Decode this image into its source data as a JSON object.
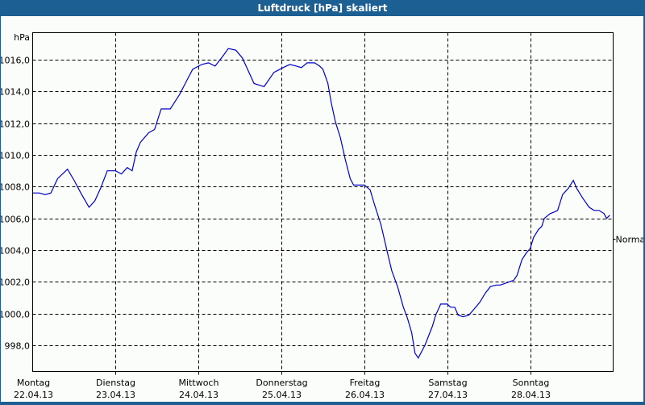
{
  "window": {
    "title": "Luftdruck [hPa] skaliert",
    "colors": {
      "frame": "#1c5f92",
      "background": "#fbfdfb",
      "line": "#0000c8",
      "grid": "#000000"
    }
  },
  "chart_data": {
    "type": "line",
    "title": "Luftdruck [hPa] skaliert",
    "xlabel": "",
    "ylabel": "hPa",
    "ylim": [
      996.4,
      1017.8
    ],
    "yticks": [
      998.0,
      1000.0,
      1002.0,
      1004.0,
      1006.0,
      1008.0,
      1010.0,
      1012.0,
      1014.0,
      1016.0
    ],
    "ytick_labels": [
      "998,0",
      "1000,0",
      "1002,0",
      "1004,0",
      "1006,0",
      "1008,0",
      "1010,0",
      "1012,0",
      "1014,0",
      "1016,0"
    ],
    "xlim": [
      0,
      7
    ],
    "xticks": [
      {
        "day": "Montag",
        "date": "22.04.13"
      },
      {
        "day": "Dienstag",
        "date": "23.04.13"
      },
      {
        "day": "Mittwoch",
        "date": "24.04.13"
      },
      {
        "day": "Donnerstag",
        "date": "25.04.13"
      },
      {
        "day": "Freitag",
        "date": "26.04.13"
      },
      {
        "day": "Samstag",
        "date": "27.04.13"
      },
      {
        "day": "Sonntag",
        "date": "28.04.13"
      }
    ],
    "grid": true,
    "annotation": {
      "label": "Normal",
      "value": 1004.7
    },
    "series": [
      {
        "name": "Luftdruck",
        "x": [
          0.0,
          0.08,
          0.15,
          0.22,
          0.3,
          0.42,
          0.5,
          0.58,
          0.68,
          0.75,
          0.82,
          0.9,
          1.0,
          1.07,
          1.14,
          1.2,
          1.25,
          1.3,
          1.4,
          1.47,
          1.55,
          1.66,
          1.77,
          1.87,
          1.93,
          2.04,
          2.12,
          2.2,
          2.29,
          2.36,
          2.45,
          2.53,
          2.67,
          2.79,
          2.91,
          3.02,
          3.1,
          3.18,
          3.24,
          3.31,
          3.4,
          3.46,
          3.5,
          3.56,
          3.6,
          3.65,
          3.71,
          3.77,
          3.83,
          3.87,
          3.94,
          4.0,
          4.07,
          4.12,
          4.2,
          4.28,
          4.33,
          4.4,
          4.47,
          4.52,
          4.57,
          4.61,
          4.65,
          4.73,
          4.82,
          4.86,
          4.92,
          5.0,
          5.04,
          5.09,
          5.13,
          5.19,
          5.26,
          5.31,
          5.39,
          5.46,
          5.52,
          5.59,
          5.64,
          5.75,
          5.8,
          5.84,
          5.9,
          5.95,
          6.0,
          6.04,
          6.1,
          6.14,
          6.17,
          6.24,
          6.29,
          6.33,
          6.39,
          6.46,
          6.52,
          6.56,
          6.63,
          6.71,
          6.77,
          6.83,
          6.89,
          6.92,
          6.96
        ],
        "values": [
          1007.6,
          1007.6,
          1007.5,
          1007.6,
          1008.5,
          1009.1,
          1008.4,
          1007.6,
          1006.7,
          1007.1,
          1007.9,
          1009.0,
          1009.0,
          1008.8,
          1009.2,
          1009.0,
          1010.2,
          1010.8,
          1011.4,
          1011.6,
          1012.9,
          1012.9,
          1013.8,
          1014.8,
          1015.4,
          1015.7,
          1015.8,
          1015.6,
          1016.2,
          1016.7,
          1016.6,
          1016.1,
          1014.5,
          1014.3,
          1015.2,
          1015.5,
          1015.7,
          1015.6,
          1015.5,
          1015.8,
          1015.8,
          1015.6,
          1015.4,
          1014.5,
          1013.3,
          1012.1,
          1011.1,
          1009.7,
          1008.5,
          1008.1,
          1008.1,
          1008.1,
          1007.8,
          1006.9,
          1005.6,
          1003.8,
          1002.7,
          1001.7,
          1000.4,
          999.7,
          998.8,
          997.5,
          997.2,
          998.0,
          999.2,
          999.9,
          1000.6,
          1000.6,
          1000.4,
          1000.4,
          999.9,
          999.8,
          999.9,
          1000.2,
          1000.7,
          1001.3,
          1001.7,
          1001.8,
          1001.8,
          1002.0,
          1002.1,
          1002.4,
          1003.4,
          1003.8,
          1004.1,
          1004.8,
          1005.3,
          1005.5,
          1006.0,
          1006.3,
          1006.4,
          1006.5,
          1007.5,
          1007.9,
          1008.4,
          1007.9,
          1007.3,
          1006.7,
          1006.5,
          1006.5,
          1006.3,
          1006.0,
          1006.2
        ]
      }
    ]
  }
}
